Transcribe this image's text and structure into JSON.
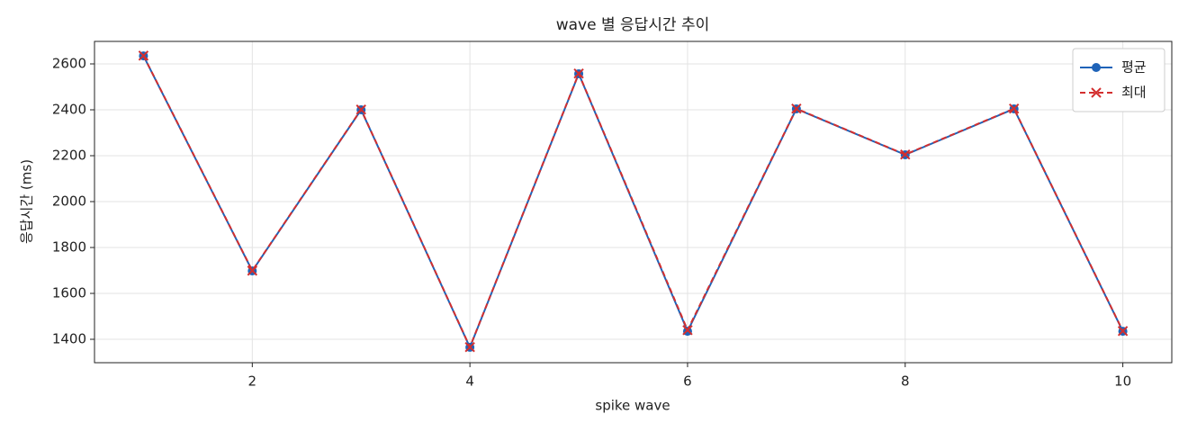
{
  "chart_data": {
    "type": "line",
    "title": "wave 별 응답시간 추이",
    "x_label": "spike wave",
    "y_label": "응답시간 (ms)",
    "x": [
      1,
      2,
      3,
      4,
      5,
      6,
      7,
      8,
      9,
      10
    ],
    "series": [
      {
        "name": "평균",
        "color": "#1f63b8",
        "dash": false,
        "marker": "circle",
        "values": [
          2635,
          1698,
          2400,
          1365,
          2557,
          1435,
          2404,
          2204,
          2404,
          1435
        ]
      },
      {
        "name": "최대",
        "color": "#d32f2f",
        "dash": true,
        "marker": "x",
        "values": [
          2636,
          1699,
          2401,
          1366,
          2558,
          1440,
          2405,
          2205,
          2405,
          1436
        ]
      }
    ],
    "xlim": [
      0.55,
      10.45
    ],
    "xticks": [
      2,
      4,
      6,
      8,
      10
    ],
    "ylim": [
      1298,
      2698
    ],
    "yticks": [
      1400,
      1600,
      1800,
      2000,
      2200,
      2400,
      2600
    ],
    "grid": true,
    "legend": "upper right"
  }
}
